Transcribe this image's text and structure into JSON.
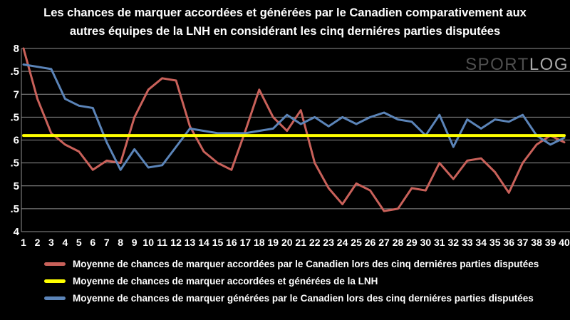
{
  "title": {
    "line1": "Les chances de marquer accordées et générées par le Canadien comparativement aux",
    "line2": "autres équipes de la LNH en considérant les cinq derniéres parties disputées"
  },
  "watermark": {
    "part1": "SPORT",
    "part2": "LOG"
  },
  "chart_data": {
    "type": "line",
    "title": "Les chances de marquer accordées et générées par le Canadien comparativement aux autres équipes de la LNH en considérant les cinq derniéres parties disputées",
    "xlabel": "",
    "ylabel": "",
    "x": [
      1,
      2,
      3,
      4,
      5,
      6,
      7,
      8,
      9,
      10,
      11,
      12,
      13,
      14,
      15,
      16,
      17,
      18,
      19,
      20,
      21,
      22,
      23,
      24,
      25,
      26,
      27,
      28,
      29,
      30,
      31,
      32,
      33,
      34,
      35,
      36,
      37,
      38,
      39,
      40
    ],
    "xlim": [
      1,
      40
    ],
    "ylim": [
      4,
      8
    ],
    "ytick_values": [
      8,
      7.5,
      7,
      6.5,
      6,
      5.5,
      5,
      4.5,
      4
    ],
    "ytick_labels": [
      "8",
      ".5",
      "7",
      ".5",
      "6",
      ".5",
      "5",
      ".5",
      "4"
    ],
    "grid": "horizontal",
    "legend_position": "bottom-left",
    "background": "#000000",
    "gridline_color": "#909090",
    "series": [
      {
        "id": "accordees",
        "name": "Moyenne de chances de marquer accordées par le Canadien lors des cinq derniéres parties disputées",
        "color": "#c9615a",
        "width": 3,
        "constant_value": null,
        "values": [
          8.0,
          6.9,
          6.15,
          5.9,
          5.75,
          5.35,
          5.55,
          5.5,
          6.5,
          7.1,
          7.35,
          7.3,
          6.3,
          5.75,
          5.5,
          5.35,
          6.2,
          7.1,
          6.5,
          6.2,
          6.65,
          5.5,
          4.95,
          4.6,
          5.05,
          4.9,
          4.45,
          4.5,
          4.95,
          4.9,
          5.5,
          5.15,
          5.55,
          5.6,
          5.3,
          4.85,
          5.5,
          5.9,
          6.1,
          5.95
        ]
      },
      {
        "id": "lnh",
        "name": "Moyenne de chances de marquer accordées et générées de la LNH",
        "color": "#ffff00",
        "width": 4,
        "constant_value": 6.1,
        "values": null
      },
      {
        "id": "generees",
        "name": "Moyenne de chances de marquer générées par le Canadien lors des cinq derniéres parties disputées",
        "color": "#5b84b8",
        "width": 3,
        "constant_value": null,
        "values": [
          7.65,
          7.6,
          7.55,
          6.9,
          6.75,
          6.7,
          5.95,
          5.35,
          5.8,
          5.4,
          5.45,
          5.85,
          6.25,
          6.2,
          6.15,
          6.15,
          6.15,
          6.2,
          6.25,
          6.55,
          6.35,
          6.5,
          6.3,
          6.5,
          6.35,
          6.5,
          6.6,
          6.45,
          6.4,
          6.1,
          6.55,
          5.85,
          6.45,
          6.25,
          6.45,
          6.4,
          6.55,
          6.1,
          5.9,
          6.05
        ]
      }
    ]
  }
}
